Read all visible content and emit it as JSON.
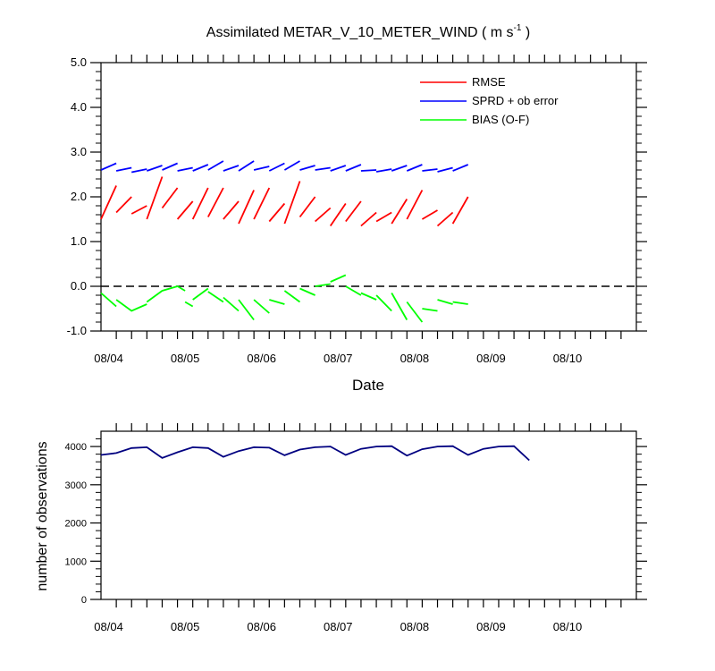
{
  "figure": {
    "title_main": "Assimilated METAR_V_10_METER_WIND ( m s",
    "title_sup": "-1",
    "title_end": " )",
    "xlabel": "Date",
    "ylabel_bottom": "number of observations"
  },
  "chart_data": [
    {
      "type": "line",
      "title": "Assimilated METAR_V_10_METER_WIND ( m s-1 )",
      "xlabel": "Date",
      "ylabel": "",
      "xlim": [
        0,
        35
      ],
      "ylim": [
        -1.0,
        5.0
      ],
      "x_ticks": [
        {
          "x": 0.5,
          "label": "08/04"
        },
        {
          "x": 5.5,
          "label": "08/05"
        },
        {
          "x": 10.5,
          "label": "08/06"
        },
        {
          "x": 15.5,
          "label": "08/07"
        },
        {
          "x": 20.5,
          "label": "08/08"
        },
        {
          "x": 25.5,
          "label": "08/09"
        },
        {
          "x": 30.5,
          "label": "08/10"
        }
      ],
      "y_ticks": [
        {
          "y": -1.0,
          "label": "-1.0"
        },
        {
          "y": 0.0,
          "label": "0.0"
        },
        {
          "y": 1.0,
          "label": "1.0"
        },
        {
          "y": 2.0,
          "label": "2.0"
        },
        {
          "y": 3.0,
          "label": "3.0"
        },
        {
          "y": 4.0,
          "label": "4.0"
        },
        {
          "y": 5.0,
          "label": "5.0"
        }
      ],
      "zero_line": 0.0,
      "legend": "top-right",
      "series": [
        {
          "name": "RMSE",
          "color": "#ff0000",
          "segments": [
            [
              [
                0,
                1.5
              ],
              [
                1,
                2.25
              ]
            ],
            [
              [
                1,
                1.65
              ],
              [
                2,
                2.0
              ]
            ],
            [
              [
                2,
                1.62
              ],
              [
                3,
                1.8
              ]
            ],
            [
              [
                3,
                1.5
              ],
              [
                4,
                2.45
              ]
            ],
            [
              [
                4,
                1.75
              ],
              [
                5,
                2.2
              ]
            ],
            [
              [
                5,
                1.5
              ],
              [
                6,
                1.9
              ]
            ],
            [
              [
                6,
                1.5
              ],
              [
                7,
                2.2
              ]
            ],
            [
              [
                7,
                1.55
              ],
              [
                8,
                2.2
              ]
            ],
            [
              [
                8,
                1.5
              ],
              [
                9,
                1.9
              ]
            ],
            [
              [
                9,
                1.4
              ],
              [
                10,
                2.15
              ]
            ],
            [
              [
                10,
                1.5
              ],
              [
                11,
                2.2
              ]
            ],
            [
              [
                11,
                1.45
              ],
              [
                12,
                1.85
              ]
            ],
            [
              [
                12,
                1.4
              ],
              [
                13,
                2.35
              ]
            ],
            [
              [
                13,
                1.55
              ],
              [
                14,
                2.0
              ]
            ],
            [
              [
                14,
                1.45
              ],
              [
                15,
                1.75
              ]
            ],
            [
              [
                15,
                1.35
              ],
              [
                16,
                1.85
              ]
            ],
            [
              [
                16,
                1.45
              ],
              [
                17,
                1.9
              ]
            ],
            [
              [
                17,
                1.35
              ],
              [
                18,
                1.65
              ]
            ],
            [
              [
                18,
                1.45
              ],
              [
                19,
                1.65
              ]
            ],
            [
              [
                19,
                1.4
              ],
              [
                20,
                1.95
              ]
            ],
            [
              [
                20,
                1.5
              ],
              [
                21,
                2.15
              ]
            ],
            [
              [
                21,
                1.5
              ],
              [
                22,
                1.7
              ]
            ],
            [
              [
                22,
                1.35
              ],
              [
                23,
                1.65
              ]
            ],
            [
              [
                23,
                1.4
              ],
              [
                24,
                2.0
              ]
            ]
          ]
        },
        {
          "name": "SPRD + ob error",
          "color": "#0000ff",
          "segments": [
            [
              [
                0,
                2.6
              ],
              [
                1,
                2.75
              ]
            ],
            [
              [
                1,
                2.58
              ],
              [
                2,
                2.65
              ]
            ],
            [
              [
                2,
                2.55
              ],
              [
                3,
                2.62
              ]
            ],
            [
              [
                3,
                2.58
              ],
              [
                4,
                2.7
              ]
            ],
            [
              [
                4,
                2.6
              ],
              [
                5,
                2.75
              ]
            ],
            [
              [
                5,
                2.58
              ],
              [
                6,
                2.65
              ]
            ],
            [
              [
                6,
                2.58
              ],
              [
                7,
                2.72
              ]
            ],
            [
              [
                7,
                2.6
              ],
              [
                8,
                2.8
              ]
            ],
            [
              [
                8,
                2.58
              ],
              [
                9,
                2.7
              ]
            ],
            [
              [
                9,
                2.58
              ],
              [
                10,
                2.8
              ]
            ],
            [
              [
                10,
                2.6
              ],
              [
                11,
                2.68
              ]
            ],
            [
              [
                11,
                2.58
              ],
              [
                12,
                2.75
              ]
            ],
            [
              [
                12,
                2.6
              ],
              [
                13,
                2.8
              ]
            ],
            [
              [
                13,
                2.6
              ],
              [
                14,
                2.7
              ]
            ],
            [
              [
                14,
                2.6
              ],
              [
                15,
                2.65
              ]
            ],
            [
              [
                15,
                2.58
              ],
              [
                16,
                2.7
              ]
            ],
            [
              [
                16,
                2.58
              ],
              [
                17,
                2.72
              ]
            ],
            [
              [
                17,
                2.58
              ],
              [
                18,
                2.6
              ]
            ],
            [
              [
                18,
                2.56
              ],
              [
                19,
                2.62
              ]
            ],
            [
              [
                19,
                2.58
              ],
              [
                20,
                2.7
              ]
            ],
            [
              [
                20,
                2.58
              ],
              [
                21,
                2.72
              ]
            ],
            [
              [
                21,
                2.58
              ],
              [
                22,
                2.62
              ]
            ],
            [
              [
                22,
                2.56
              ],
              [
                23,
                2.65
              ]
            ],
            [
              [
                23,
                2.58
              ],
              [
                24,
                2.72
              ]
            ]
          ]
        },
        {
          "name": "BIAS (O-F)",
          "color": "#00ff00",
          "segments": [
            [
              [
                0,
                -0.15
              ],
              [
                1,
                -0.45
              ]
            ],
            [
              [
                1,
                -0.3
              ],
              [
                2,
                -0.55
              ],
              [
                3,
                -0.4
              ]
            ],
            [
              [
                3,
                -0.35
              ],
              [
                4,
                -0.1
              ],
              [
                5,
                0.0
              ],
              [
                5.5,
                -0.1
              ]
            ],
            [
              [
                5.5,
                -0.35
              ],
              [
                6,
                -0.45
              ]
            ],
            [
              [
                6,
                -0.3
              ],
              [
                7,
                -0.05
              ]
            ],
            [
              [
                7,
                -0.12
              ],
              [
                8,
                -0.35
              ]
            ],
            [
              [
                8,
                -0.25
              ],
              [
                9,
                -0.55
              ]
            ],
            [
              [
                9,
                -0.3
              ],
              [
                10,
                -0.75
              ]
            ],
            [
              [
                10,
                -0.3
              ],
              [
                11,
                -0.6
              ]
            ],
            [
              [
                11,
                -0.3
              ],
              [
                12,
                -0.4
              ]
            ],
            [
              [
                12,
                -0.1
              ],
              [
                13,
                -0.35
              ]
            ],
            [
              [
                13,
                -0.05
              ],
              [
                14,
                -0.2
              ]
            ],
            [
              [
                14,
                0.0
              ],
              [
                15,
                0.05
              ]
            ],
            [
              [
                15,
                0.1
              ],
              [
                16,
                0.25
              ]
            ],
            [
              [
                16,
                0.0
              ],
              [
                17,
                -0.2
              ]
            ],
            [
              [
                17,
                -0.15
              ],
              [
                18,
                -0.3
              ]
            ],
            [
              [
                18,
                -0.2
              ],
              [
                19,
                -0.55
              ]
            ],
            [
              [
                19,
                -0.15
              ],
              [
                20,
                -0.75
              ]
            ],
            [
              [
                20,
                -0.35
              ],
              [
                21,
                -0.8
              ]
            ],
            [
              [
                21,
                -0.5
              ],
              [
                22,
                -0.55
              ]
            ],
            [
              [
                22,
                -0.3
              ],
              [
                23,
                -0.4
              ]
            ],
            [
              [
                23,
                -0.35
              ],
              [
                24,
                -0.4
              ]
            ]
          ]
        }
      ]
    },
    {
      "type": "line",
      "title": "",
      "xlabel": "",
      "ylabel": "number of observations",
      "xlim": [
        0,
        35
      ],
      "ylim": [
        0,
        4400
      ],
      "x_ticks": [
        {
          "x": 0.5,
          "label": "08/04"
        },
        {
          "x": 5.5,
          "label": "08/05"
        },
        {
          "x": 10.5,
          "label": "08/06"
        },
        {
          "x": 15.5,
          "label": "08/07"
        },
        {
          "x": 20.5,
          "label": "08/08"
        },
        {
          "x": 25.5,
          "label": "08/09"
        },
        {
          "x": 30.5,
          "label": "08/10"
        }
      ],
      "y_ticks": [
        {
          "y": 0,
          "label": "0"
        },
        {
          "y": 1000,
          "label": "1000"
        },
        {
          "y": 2000,
          "label": "2000"
        },
        {
          "y": 3000,
          "label": "3000"
        },
        {
          "y": 4000,
          "label": "4000"
        }
      ],
      "series": [
        {
          "name": "",
          "color": "#000080",
          "points": [
            [
              0,
              3780
            ],
            [
              1,
              3830
            ],
            [
              2,
              3960
            ],
            [
              3,
              3980
            ],
            [
              4,
              3700
            ],
            [
              5,
              3850
            ],
            [
              6,
              3980
            ],
            [
              7,
              3960
            ],
            [
              8,
              3730
            ],
            [
              9,
              3880
            ],
            [
              10,
              3980
            ],
            [
              11,
              3970
            ],
            [
              12,
              3770
            ],
            [
              13,
              3920
            ],
            [
              14,
              3980
            ],
            [
              15,
              4000
            ],
            [
              16,
              3780
            ],
            [
              17,
              3940
            ],
            [
              18,
              4000
            ],
            [
              19,
              4010
            ],
            [
              20,
              3760
            ],
            [
              21,
              3930
            ],
            [
              22,
              4000
            ],
            [
              23,
              4010
            ],
            [
              24,
              3780
            ],
            [
              25,
              3940
            ],
            [
              26,
              4000
            ],
            [
              27,
              4010
            ],
            [
              28,
              3640
            ]
          ]
        }
      ]
    }
  ]
}
